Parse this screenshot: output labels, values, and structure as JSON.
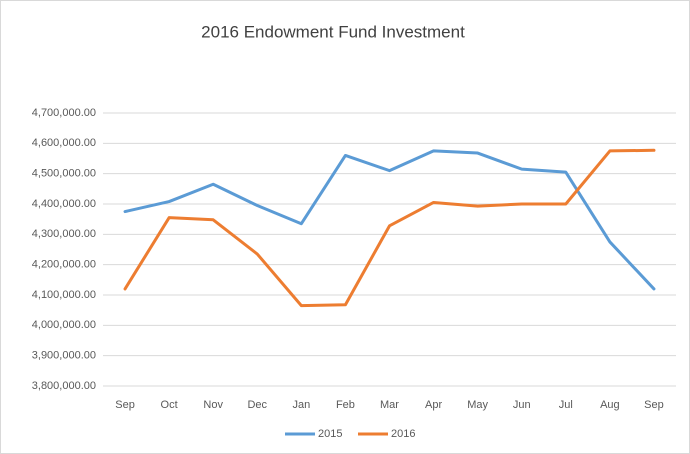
{
  "chart_data": {
    "type": "line",
    "title": "2016 Endowment Fund Investment",
    "categories": [
      "Sep",
      "Oct",
      "Nov",
      "Dec",
      "Jan",
      "Feb",
      "Mar",
      "Apr",
      "May",
      "Jun",
      "Jul",
      "Aug",
      "Sep"
    ],
    "series": [
      {
        "name": "2015",
        "color": "#5b9bd5",
        "values": [
          4375000,
          4408000,
          4465000,
          4395000,
          4335000,
          4560000,
          4510000,
          4575000,
          4568000,
          4515000,
          4505000,
          4275000,
          4120000
        ]
      },
      {
        "name": "2016",
        "color": "#ed7d31",
        "values": [
          4120000,
          4355000,
          4348000,
          4235000,
          4065000,
          4068000,
          4328000,
          4405000,
          4393000,
          4400000,
          4400000,
          4575000,
          4577000
        ]
      }
    ],
    "ylim": [
      3800000,
      4700000
    ],
    "yticks": [
      {
        "value": 3800000,
        "label": "3,800,000.00"
      },
      {
        "value": 3900000,
        "label": "3,900,000.00"
      },
      {
        "value": 4000000,
        "label": "4,000,000.00"
      },
      {
        "value": 4100000,
        "label": "4,100,000.00"
      },
      {
        "value": 4200000,
        "label": "4,200,000.00"
      },
      {
        "value": 4300000,
        "label": "4,300,000.00"
      },
      {
        "value": 4400000,
        "label": "4,400,000.00"
      },
      {
        "value": 4500000,
        "label": "4,500,000.00"
      },
      {
        "value": 4600000,
        "label": "4,600,000.00"
      },
      {
        "value": 4700000,
        "label": "4,700,000.00"
      }
    ],
    "grid": true,
    "legend": "bottom"
  }
}
